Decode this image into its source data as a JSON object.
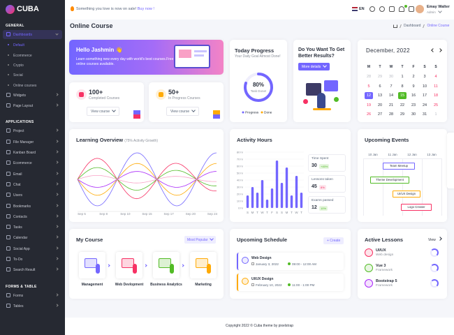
{
  "sidebar": {
    "logo": "CUBA",
    "sections": [
      {
        "title": "GENERAL",
        "items": [
          {
            "label": "Dashboards",
            "sub": [
              "Default",
              "Ecommerce",
              "Crypto",
              "Social",
              "Online courses"
            ]
          },
          {
            "label": "Widgets"
          },
          {
            "label": "Page Layout"
          }
        ]
      },
      {
        "title": "APPLICATIONS",
        "items": [
          {
            "label": "Project"
          },
          {
            "label": "File Manager"
          },
          {
            "label": "Kanban Board"
          },
          {
            "label": "Ecommerce"
          },
          {
            "label": "Email"
          },
          {
            "label": "Chat"
          },
          {
            "label": "Users"
          },
          {
            "label": "Bookmarks"
          },
          {
            "label": "Contacts"
          },
          {
            "label": "Tasks"
          },
          {
            "label": "Calendar"
          },
          {
            "label": "Social App"
          },
          {
            "label": "To-Do"
          },
          {
            "label": "Search Result"
          }
        ]
      },
      {
        "title": "FORMS & TABLE",
        "items": [
          {
            "label": "Forms"
          },
          {
            "label": "Tables"
          }
        ]
      }
    ]
  },
  "header": {
    "notice": "Something you love is now on sale!",
    "link": "Buy now !",
    "language": "EN",
    "user": "Emay Walter",
    "role": "Admin"
  },
  "page": {
    "title": "Online Course",
    "breadcrumb": [
      "Dashboard",
      "Online Course"
    ]
  },
  "welcome": {
    "title": "Hello Jashmin 👋",
    "text": "Learn something new every day with world's best courses.Free online courses available."
  },
  "stats": [
    {
      "value": "100+",
      "label": "Completed Courses",
      "button": "View course"
    },
    {
      "value": "50+",
      "label": "In Progress Courses",
      "button": "View course"
    }
  ],
  "progress": {
    "title": "Today Progress",
    "subtitle": "Your Daily Goal Almost Done!",
    "value": 80,
    "label": "80%",
    "caption": "Task Done!",
    "legend": [
      "Progress",
      "Done"
    ]
  },
  "promo": {
    "title": "Do You Want To Get Better Results?",
    "button": "More details"
  },
  "calendar": {
    "title": "December, 2022",
    "weekdays": [
      "M",
      "T",
      "W",
      "T",
      "F",
      "S",
      "S"
    ],
    "weeks": [
      [
        28,
        29,
        30,
        1,
        2,
        3,
        4
      ],
      [
        5,
        6,
        7,
        8,
        9,
        10,
        11
      ],
      [
        12,
        13,
        14,
        15,
        16,
        17,
        18
      ],
      [
        19,
        20,
        21,
        22,
        23,
        24,
        25
      ],
      [
        26,
        27,
        28,
        29,
        30,
        31,
        1
      ]
    ],
    "selected": [
      12,
      15
    ]
  },
  "learning": {
    "title": "Learning Overview",
    "subtitle": "(75% Activity Growth)",
    "x": [
      "Sep 5",
      "Sep 8",
      "Sep 10",
      "Sep 15",
      "Sep 17",
      "Sep 20",
      "Sep 24"
    ]
  },
  "activity": {
    "title": "Activity Hours",
    "chart": {
      "type": "bar",
      "categories": [
        "S",
        "M",
        "T",
        "W",
        "T",
        "F",
        "S",
        "S",
        "M",
        "T",
        "W",
        "T"
      ],
      "values": [
        18,
        30,
        22,
        40,
        12,
        28,
        68,
        36,
        58,
        18,
        46,
        22
      ],
      "ylim": [
        0,
        80
      ],
      "yticks": [
        {
          "value": 0,
          "label": "0 hr"
        },
        {
          "value": 10,
          "label": "10 hr"
        },
        {
          "value": 20,
          "label": "20 hr"
        },
        {
          "value": 30,
          "label": "30 hr"
        },
        {
          "value": 40,
          "label": "40 hr"
        },
        {
          "value": 50,
          "label": "50 hr"
        },
        {
          "value": 60,
          "label": "60 hr"
        },
        {
          "value": 70,
          "label": "70 hr"
        },
        {
          "value": 80,
          "label": "80 hr"
        }
      ]
    },
    "stats": [
      {
        "label": "Time Spent",
        "value": "30",
        "change": "+45%"
      },
      {
        "label": "Lessons taken",
        "value": "45",
        "change": "8%"
      },
      {
        "label": "Exams passed",
        "value": "12",
        "change": "10%"
      }
    ]
  },
  "events": {
    "title": "Upcoming Events",
    "dates": [
      "10 Jan",
      "11 Jan",
      "12 Jan",
      "13 Jan"
    ],
    "items": [
      "Team Meetup",
      "Theme Development",
      "UI/UX Design",
      "Logo Creater"
    ]
  },
  "courses": {
    "title": "My Course",
    "filter": "Most Popular",
    "items": [
      "Management",
      "Web Devlopment",
      "Business Analytics",
      "Marketing"
    ]
  },
  "schedule": {
    "title": "Upcoming Schedule",
    "button": "+ Create",
    "items": [
      {
        "title": "Web Design",
        "date": "January 3, 2022",
        "time": "09:00 - 12:00 AM"
      },
      {
        "title": "UI/UX Design",
        "date": "February 10, 2022",
        "time": "11:00 - 1:00 PM"
      }
    ]
  },
  "lessons": {
    "title": "Active Lessons",
    "link": "View",
    "items": [
      {
        "title": "UI/UX",
        "sub": "Web design"
      },
      {
        "title": "Vue 3",
        "sub": "Framework"
      },
      {
        "title": "Bootstrap 5",
        "sub": "Framework"
      }
    ]
  },
  "footer": "Copyright 2022 © Cuba theme by pixelstrap"
}
